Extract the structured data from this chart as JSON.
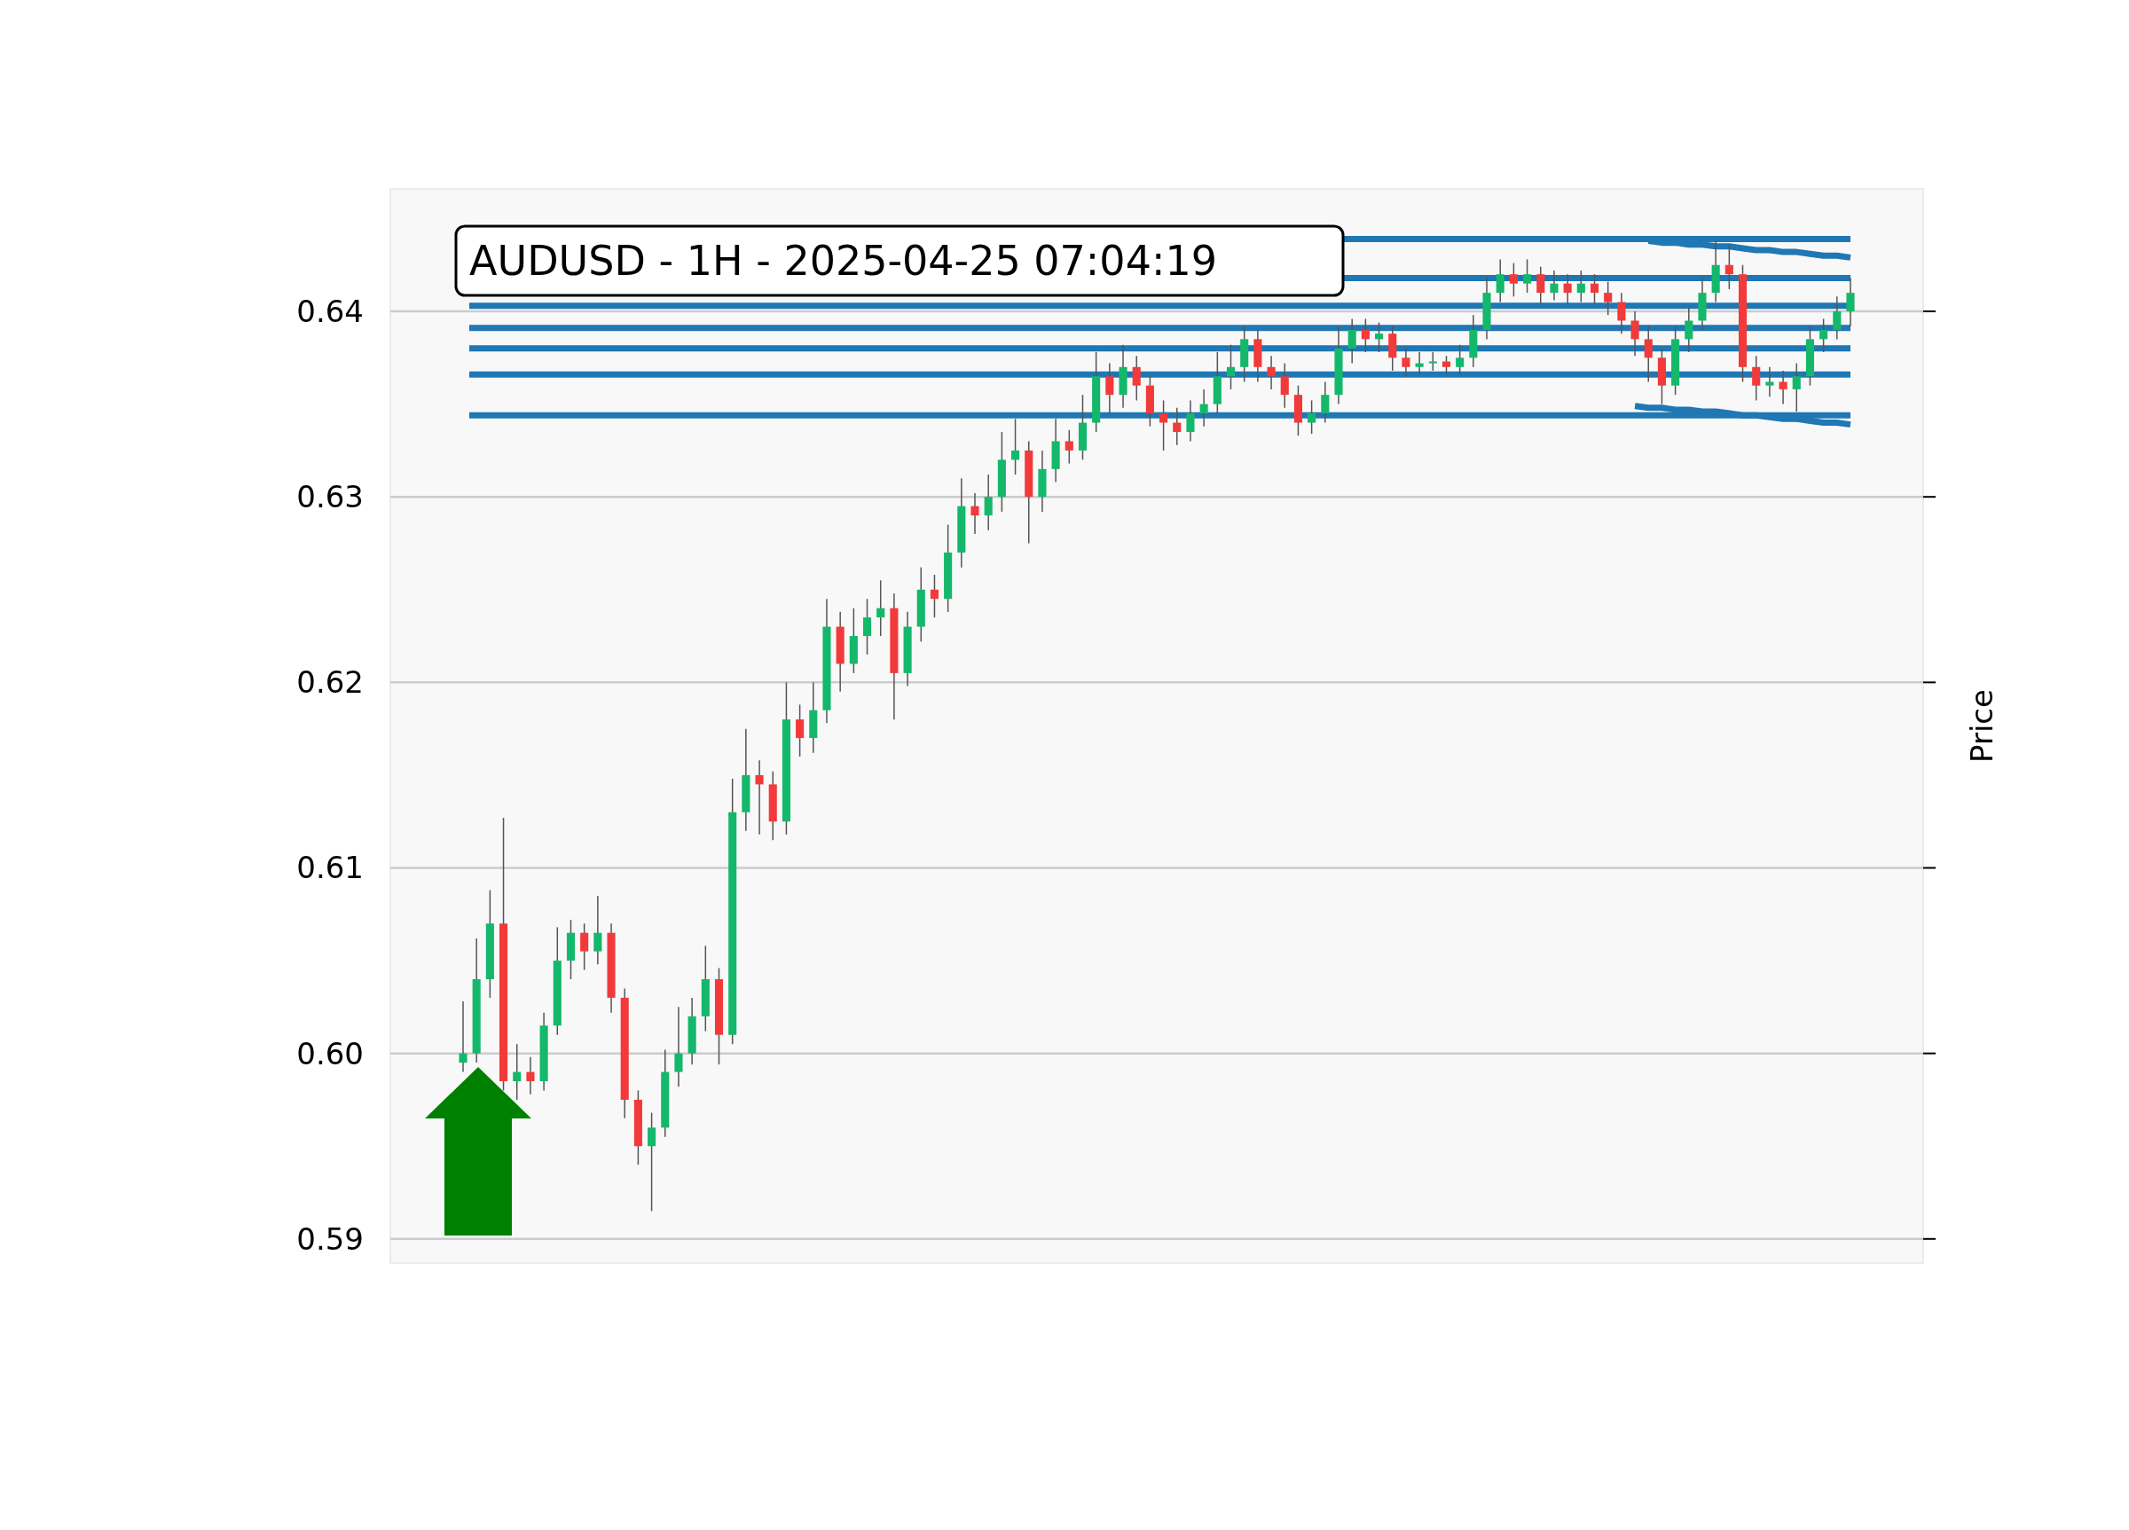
{
  "chart_data": {
    "type": "candlestick",
    "title": "AUDUSD - 1H - 2025-04-25 07:04:19",
    "ylabel": "Price",
    "ylim": [
      0.5887,
      0.6466
    ],
    "yticks": [
      0.59,
      {
        "value": 0.6,
        "label": "0.60"
      },
      0.61,
      0.62,
      0.63,
      0.64
    ],
    "grid": "y",
    "tick_labels": "y",
    "categories": [
      null,
      null,
      null,
      null,
      null,
      null,
      null,
      null,
      null,
      null,
      null,
      null,
      null,
      null,
      null,
      null,
      null,
      null,
      null,
      null,
      null,
      null,
      null,
      null,
      null,
      null,
      null,
      null,
      null,
      null,
      null,
      null,
      null,
      null,
      null,
      null,
      null,
      null,
      null,
      null,
      null,
      null,
      null,
      null,
      null,
      null,
      null,
      null,
      null,
      null,
      null,
      null,
      null,
      null,
      null,
      null,
      null,
      null,
      null,
      null,
      null,
      null,
      null,
      null,
      null,
      null,
      null,
      null,
      null,
      null,
      null,
      null,
      null,
      null,
      null,
      null,
      null,
      null,
      null,
      null,
      null,
      null,
      null,
      null,
      null,
      null,
      null,
      null,
      null,
      null,
      null,
      null,
      null,
      null,
      null,
      null,
      null,
      null,
      null,
      null,
      null,
      null,
      null,
      null
    ],
    "ohlc": [
      [
        0.5995,
        0.6028,
        0.599,
        0.6
      ],
      [
        0.6,
        0.6062,
        0.5995,
        0.604
      ],
      [
        0.604,
        0.6088,
        0.603,
        0.607
      ],
      [
        0.607,
        0.6127,
        0.598,
        0.5985
      ],
      [
        0.5985,
        0.6005,
        0.5975,
        0.599
      ],
      [
        0.599,
        0.5998,
        0.5978,
        0.5985
      ],
      [
        0.5985,
        0.6022,
        0.598,
        0.6015
      ],
      [
        0.6015,
        0.6068,
        0.601,
        0.605
      ],
      [
        0.605,
        0.6072,
        0.604,
        0.6065
      ],
      [
        0.6065,
        0.607,
        0.6045,
        0.6055
      ],
      [
        0.6055,
        0.6085,
        0.6048,
        0.6065
      ],
      [
        0.6065,
        0.607,
        0.6022,
        0.603
      ],
      [
        0.603,
        0.6035,
        0.5965,
        0.5975
      ],
      [
        0.5975,
        0.598,
        0.594,
        0.595
      ],
      [
        0.595,
        0.5968,
        0.5915,
        0.596
      ],
      [
        0.596,
        0.6002,
        0.5955,
        0.599
      ],
      [
        0.599,
        0.6025,
        0.5982,
        0.6
      ],
      [
        0.6,
        0.603,
        0.5994,
        0.602
      ],
      [
        0.602,
        0.6058,
        0.6012,
        0.604
      ],
      [
        0.604,
        0.6046,
        0.5994,
        0.601
      ],
      [
        0.601,
        0.6148,
        0.6005,
        0.613
      ],
      [
        0.613,
        0.6175,
        0.612,
        0.615
      ],
      [
        0.615,
        0.6158,
        0.6118,
        0.6145
      ],
      [
        0.6145,
        0.6152,
        0.6115,
        0.6125
      ],
      [
        0.6125,
        0.62,
        0.6118,
        0.618
      ],
      [
        0.618,
        0.6188,
        0.616,
        0.617
      ],
      [
        0.617,
        0.62,
        0.6162,
        0.6185
      ],
      [
        0.6185,
        0.6245,
        0.6178,
        0.623
      ],
      [
        0.623,
        0.6238,
        0.6195,
        0.621
      ],
      [
        0.621,
        0.624,
        0.6205,
        0.6225
      ],
      [
        0.6225,
        0.6245,
        0.6215,
        0.6235
      ],
      [
        0.6235,
        0.6255,
        0.6225,
        0.624
      ],
      [
        0.624,
        0.6248,
        0.618,
        0.6205
      ],
      [
        0.6205,
        0.6238,
        0.6198,
        0.623
      ],
      [
        0.623,
        0.6262,
        0.6222,
        0.625
      ],
      [
        0.625,
        0.6258,
        0.6235,
        0.6245
      ],
      [
        0.6245,
        0.6285,
        0.6238,
        0.627
      ],
      [
        0.627,
        0.631,
        0.6262,
        0.6295
      ],
      [
        0.6295,
        0.6302,
        0.628,
        0.629
      ],
      [
        0.629,
        0.6312,
        0.6282,
        0.63
      ],
      [
        0.63,
        0.6335,
        0.6292,
        0.632
      ],
      [
        0.632,
        0.6342,
        0.6312,
        0.6325
      ],
      [
        0.6325,
        0.633,
        0.6275,
        0.63
      ],
      [
        0.63,
        0.6325,
        0.6292,
        0.6315
      ],
      [
        0.6315,
        0.6342,
        0.6308,
        0.633
      ],
      [
        0.633,
        0.6336,
        0.6318,
        0.6325
      ],
      [
        0.6325,
        0.6355,
        0.632,
        0.634
      ],
      [
        0.634,
        0.6378,
        0.6335,
        0.6365
      ],
      [
        0.6365,
        0.6372,
        0.6345,
        0.6355
      ],
      [
        0.6355,
        0.6382,
        0.6348,
        0.637
      ],
      [
        0.637,
        0.6376,
        0.6352,
        0.636
      ],
      [
        0.636,
        0.6365,
        0.6338,
        0.6345
      ],
      [
        0.6345,
        0.6352,
        0.6325,
        0.634
      ],
      [
        0.634,
        0.6348,
        0.6328,
        0.6335
      ],
      [
        0.6335,
        0.6352,
        0.633,
        0.6345
      ],
      [
        0.6345,
        0.6358,
        0.6338,
        0.635
      ],
      [
        0.635,
        0.6378,
        0.6345,
        0.6365
      ],
      [
        0.6365,
        0.6382,
        0.6358,
        0.637
      ],
      [
        0.637,
        0.6392,
        0.6362,
        0.6385
      ],
      [
        0.6385,
        0.639,
        0.6362,
        0.637
      ],
      [
        0.637,
        0.6376,
        0.6358,
        0.6365
      ],
      [
        0.6365,
        0.6372,
        0.6348,
        0.6355
      ],
      [
        0.6355,
        0.636,
        0.6333,
        0.634
      ],
      [
        0.634,
        0.6352,
        0.6334,
        0.6345
      ],
      [
        0.6345,
        0.6362,
        0.634,
        0.6355
      ],
      [
        0.6355,
        0.6392,
        0.635,
        0.638
      ],
      [
        0.638,
        0.6396,
        0.6372,
        0.639
      ],
      [
        0.639,
        0.6396,
        0.6378,
        0.6385
      ],
      [
        0.6385,
        0.6394,
        0.6378,
        0.6388
      ],
      [
        0.6388,
        0.6392,
        0.6368,
        0.6375
      ],
      [
        0.6375,
        0.638,
        0.6365,
        0.637
      ],
      [
        0.637,
        0.6378,
        0.6366,
        0.6372
      ],
      [
        0.6372,
        0.6378,
        0.6368,
        0.6373
      ],
      [
        0.6373,
        0.6376,
        0.6366,
        0.637
      ],
      [
        0.637,
        0.6382,
        0.6366,
        0.6375
      ],
      [
        0.6375,
        0.6398,
        0.637,
        0.639
      ],
      [
        0.639,
        0.6418,
        0.6385,
        0.641
      ],
      [
        0.641,
        0.6428,
        0.6405,
        0.642
      ],
      [
        0.642,
        0.6426,
        0.6408,
        0.6415
      ],
      [
        0.6415,
        0.6428,
        0.641,
        0.642
      ],
      [
        0.642,
        0.6424,
        0.6404,
        0.641
      ],
      [
        0.641,
        0.6422,
        0.6406,
        0.6415
      ],
      [
        0.6415,
        0.642,
        0.6404,
        0.641
      ],
      [
        0.641,
        0.6422,
        0.6405,
        0.6415
      ],
      [
        0.6415,
        0.642,
        0.6404,
        0.641
      ],
      [
        0.641,
        0.6416,
        0.6398,
        0.6405
      ],
      [
        0.6405,
        0.641,
        0.6388,
        0.6395
      ],
      [
        0.6395,
        0.64,
        0.6376,
        0.6385
      ],
      [
        0.6385,
        0.6392,
        0.6362,
        0.6375
      ],
      [
        0.6375,
        0.638,
        0.635,
        0.636
      ],
      [
        0.636,
        0.6392,
        0.6355,
        0.6385
      ],
      [
        0.6385,
        0.6402,
        0.6378,
        0.6395
      ],
      [
        0.6395,
        0.6418,
        0.639,
        0.641
      ],
      [
        0.641,
        0.6438,
        0.6405,
        0.6425
      ],
      [
        0.6425,
        0.6436,
        0.6412,
        0.642
      ],
      [
        0.642,
        0.6425,
        0.6362,
        0.637
      ],
      [
        0.637,
        0.6376,
        0.6352,
        0.636
      ],
      [
        0.636,
        0.637,
        0.6354,
        0.6362
      ],
      [
        0.6362,
        0.6368,
        0.635,
        0.6358
      ],
      [
        0.6358,
        0.6372,
        0.6346,
        0.6365
      ],
      [
        0.6365,
        0.6392,
        0.636,
        0.6385
      ],
      [
        0.6385,
        0.6396,
        0.6378,
        0.639
      ],
      [
        0.639,
        0.6408,
        0.6385,
        0.64
      ],
      [
        0.64,
        0.6418,
        0.6392,
        0.641
      ]
    ],
    "series": [
      {
        "type": "line",
        "color": "#1f77b4",
        "values": [
          null,
          null,
          null,
          null,
          null,
          null,
          null,
          null,
          null,
          null,
          null,
          null,
          null,
          null,
          null,
          null,
          null,
          null,
          null,
          null,
          null,
          null,
          null,
          null,
          null,
          null,
          null,
          null,
          null,
          null,
          null,
          null,
          null,
          null,
          null,
          null,
          null,
          null,
          null,
          null,
          null,
          null,
          null,
          null,
          null,
          null,
          null,
          null,
          null,
          null,
          null,
          null,
          null,
          null,
          null,
          null,
          null,
          null,
          null,
          null,
          null,
          null,
          null,
          null,
          null,
          null,
          null,
          null,
          null,
          null,
          null,
          null,
          null,
          null,
          null,
          null,
          null,
          null,
          null,
          null,
          null,
          null,
          null,
          null,
          null,
          null,
          null,
          0.6349,
          0.6348,
          0.6348,
          0.6347,
          0.6347,
          0.6346,
          0.6346,
          0.6345,
          0.6344,
          0.6344,
          0.6343,
          0.6342,
          0.6342,
          0.6341,
          0.634,
          0.634,
          0.6339
        ]
      },
      {
        "type": "line",
        "color": "#1f77b4",
        "values": [
          null,
          null,
          null,
          null,
          null,
          null,
          null,
          null,
          null,
          null,
          null,
          null,
          null,
          null,
          null,
          null,
          null,
          null,
          null,
          null,
          null,
          null,
          null,
          null,
          null,
          null,
          null,
          null,
          null,
          null,
          null,
          null,
          null,
          null,
          null,
          null,
          null,
          null,
          null,
          null,
          null,
          null,
          null,
          null,
          null,
          null,
          null,
          null,
          null,
          null,
          null,
          null,
          null,
          null,
          null,
          null,
          null,
          null,
          null,
          null,
          null,
          null,
          null,
          null,
          null,
          null,
          null,
          null,
          null,
          null,
          null,
          null,
          null,
          null,
          null,
          null,
          null,
          null,
          null,
          null,
          null,
          null,
          null,
          null,
          null,
          null,
          null,
          null,
          0.6438,
          0.6437,
          0.6437,
          0.6436,
          0.6436,
          0.6435,
          0.6435,
          0.6434,
          0.6433,
          0.6433,
          0.6432,
          0.6432,
          0.6431,
          0.643,
          0.643,
          0.6429
        ]
      }
    ],
    "ref_lines": [
      {
        "axis": "y",
        "value": 0.6439,
        "color": "#1f77b4"
      },
      {
        "axis": "y",
        "value": 0.6418,
        "color": "#1f77b4"
      },
      {
        "axis": "y",
        "value": 0.6403,
        "color": "#1f77b4"
      },
      {
        "axis": "y",
        "value": 0.6391,
        "color": "#1f77b4"
      },
      {
        "axis": "y",
        "value": 0.638,
        "color": "#1f77b4"
      },
      {
        "axis": "y",
        "value": 0.6366,
        "color": "#1f77b4"
      },
      {
        "axis": "y",
        "value": 0.6344,
        "color": "#1f77b4"
      }
    ]
  }
}
